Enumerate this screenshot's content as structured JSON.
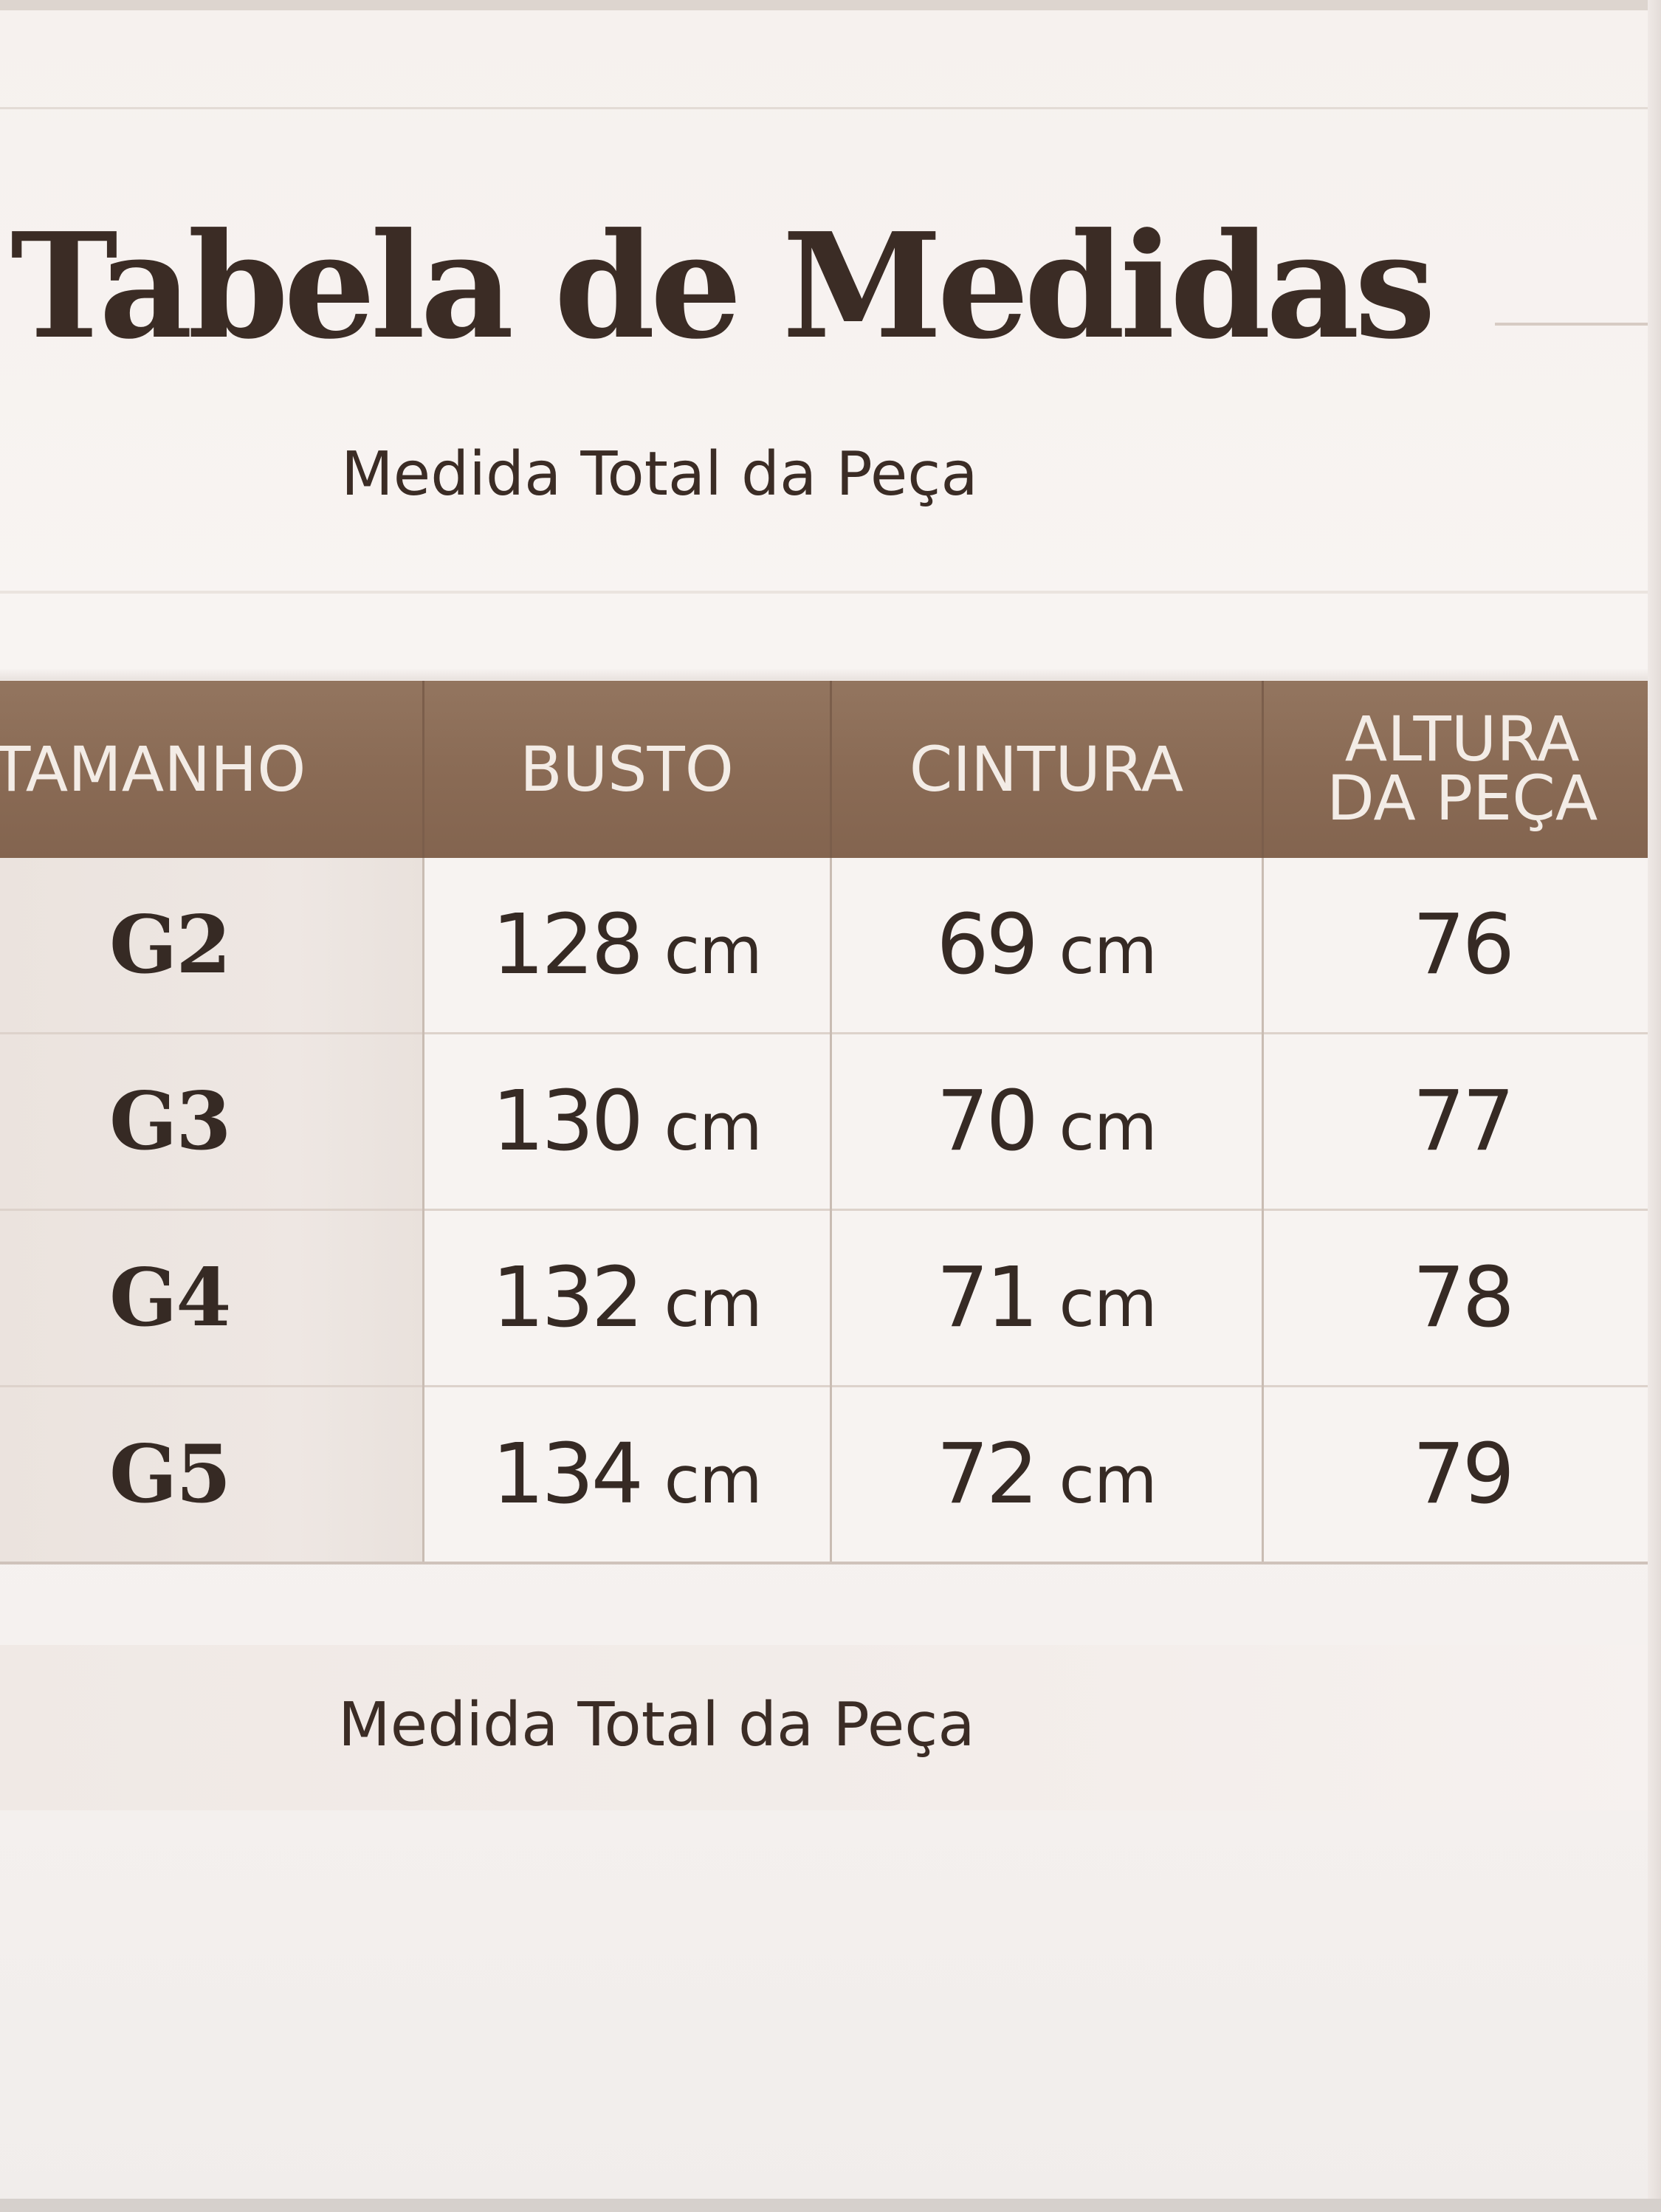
{
  "title": "Tabela de Medidas",
  "subtitle": "Medida Total da Peça",
  "table": {
    "headers": {
      "size": "TAMANHO",
      "bust": "BUSTO",
      "waist": "CINTURA",
      "height_line1": "ALTURA",
      "height_line2": "DA PEÇA"
    },
    "rows": [
      {
        "size": "G2",
        "bust": "128",
        "waist": "69",
        "height": "76"
      },
      {
        "size": "G3",
        "bust": "130",
        "waist": "70",
        "height": "77"
      },
      {
        "size": "G4",
        "bust": "132",
        "waist": "71",
        "height": "78"
      },
      {
        "size": "G5",
        "bust": "134",
        "waist": "72",
        "height": "79"
      }
    ],
    "unit": "cm"
  },
  "footer": "Medida Total da Peça",
  "colors": {
    "header_background": "#8a6b55",
    "header_text": "#f3ece6",
    "body_text": "#362a24",
    "page_background": "#f7f3f1"
  }
}
